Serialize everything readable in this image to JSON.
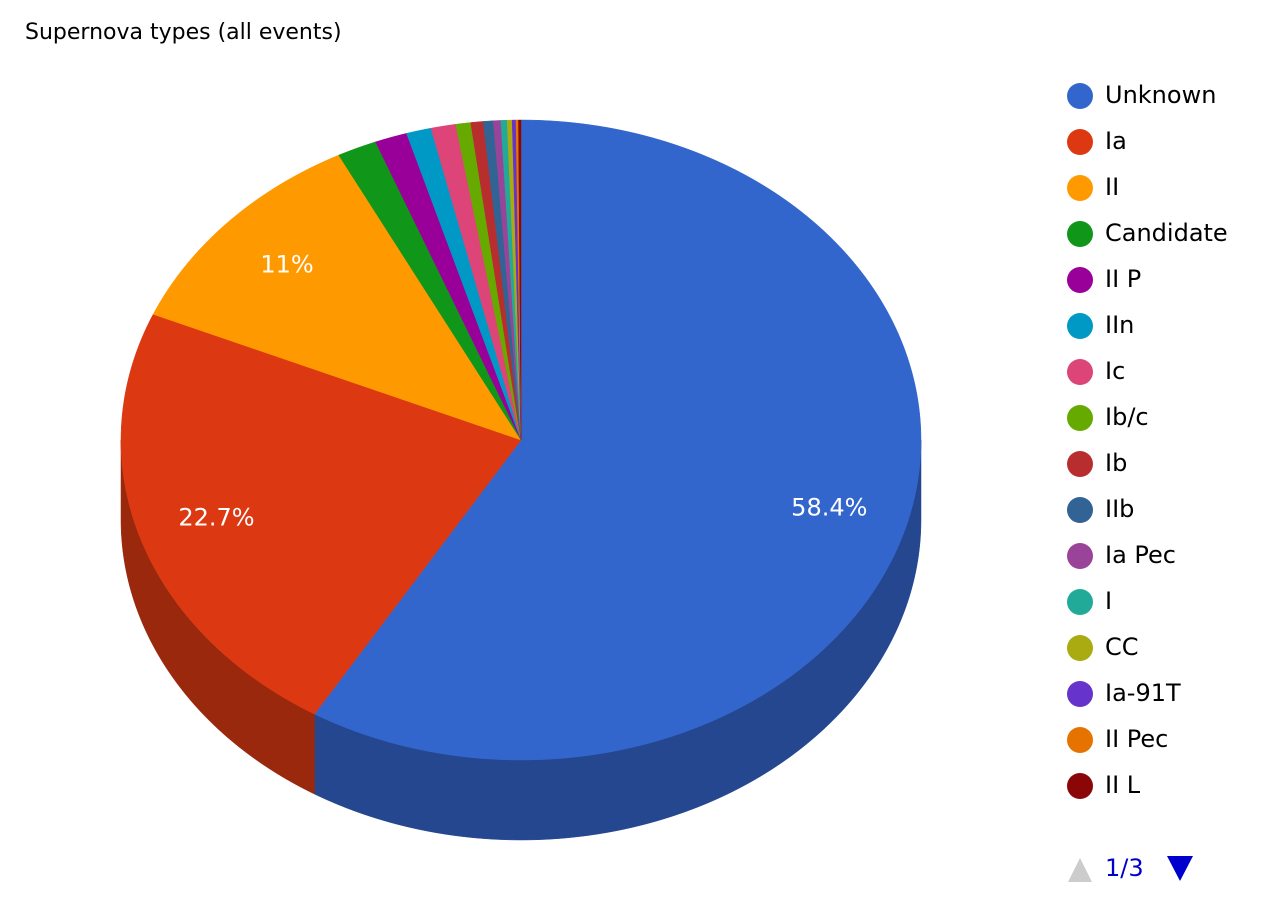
{
  "chart_data": {
    "type": "pie3d",
    "title": "Supernova types (all events)",
    "categories": [
      "Unknown",
      "Ia",
      "II",
      "Candidate",
      "II P",
      "IIn",
      "Ic",
      "Ib/c",
      "Ib",
      "IIb",
      "Ia Pec",
      "I",
      "CC",
      "Ia-91T",
      "II Pec",
      "II L"
    ],
    "values": [
      58.4,
      22.7,
      11,
      1.6,
      1.3,
      1.0,
      1.0,
      0.6,
      0.5,
      0.4,
      0.3,
      0.25,
      0.2,
      0.15,
      0.1,
      0.1
    ],
    "value_labels": [
      "58.4%",
      "22.7%",
      "11%",
      null,
      null,
      null,
      null,
      null,
      null,
      null,
      null,
      null,
      null,
      null,
      null,
      null
    ],
    "colors": [
      "#3366cc",
      "#dc3912",
      "#ff9900",
      "#109618",
      "#990099",
      "#0099c6",
      "#dd4477",
      "#66aa00",
      "#b82e2e",
      "#316395",
      "#994499",
      "#22aa99",
      "#aaaa11",
      "#6633cc",
      "#e67300",
      "#8b0707"
    ],
    "legend_position": "right",
    "legend_page": "1/3"
  }
}
